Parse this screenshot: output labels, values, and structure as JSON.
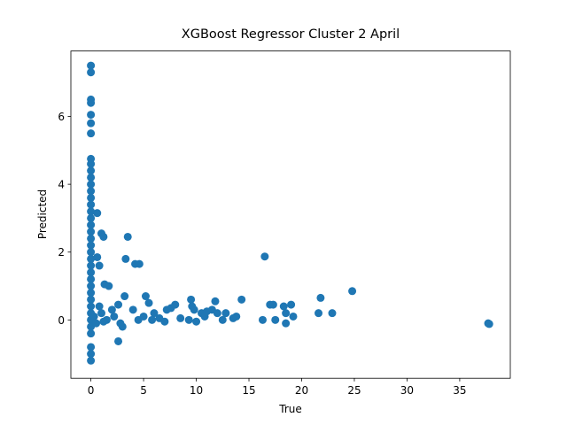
{
  "chart_data": {
    "type": "scatter",
    "title": "XGBoost Regressor Cluster 2 April",
    "x_label": "True",
    "y_label": "Predicted",
    "color": "#1f77b4",
    "x": [
      0,
      0,
      0,
      0,
      0,
      0,
      0,
      0,
      0,
      0,
      0,
      0,
      0,
      0,
      0,
      0,
      0,
      0,
      0,
      0,
      0,
      0,
      0,
      0,
      0,
      0,
      0,
      0,
      0,
      0,
      0,
      0,
      0,
      0,
      0,
      0,
      0,
      0.6,
      1.0,
      1.2,
      3.5,
      3.3,
      4.2,
      4.6,
      0.6,
      0.8,
      1.3,
      1.7,
      3.2,
      5.2,
      5.5,
      2.6,
      2.0,
      4.0,
      6.0,
      7.2,
      7.6,
      8.0,
      9.5,
      9.6,
      9.8,
      10.5,
      11.0,
      11.5,
      11.8,
      12.0,
      12.8,
      13.5,
      14.3,
      16.3,
      16.5,
      17.0,
      17.3,
      17.5,
      18.3,
      18.5,
      18.5,
      19.0,
      19.2,
      21.6,
      21.8,
      22.9,
      24.8,
      37.7,
      37.8,
      2.6,
      3.0,
      1.5,
      2.2,
      4.5,
      5.0,
      6.5,
      7.0,
      8.5,
      9.3,
      10.0,
      10.8,
      12.5,
      13.8,
      0.3,
      0.5,
      1.0,
      0.8,
      1.2,
      2.8,
      5.8
    ],
    "values": [
      7.5,
      7.3,
      6.5,
      6.4,
      6.05,
      5.8,
      5.5,
      4.75,
      4.6,
      4.4,
      4.2,
      4.0,
      3.8,
      3.6,
      3.4,
      3.2,
      3.0,
      2.8,
      2.6,
      2.4,
      2.2,
      2.0,
      1.8,
      1.6,
      1.4,
      1.2,
      1.0,
      0.8,
      0.6,
      0.4,
      0.2,
      0,
      -0.2,
      -0.4,
      -0.8,
      -1.0,
      -1.2,
      3.15,
      2.55,
      2.45,
      2.45,
      1.8,
      1.65,
      1.65,
      1.85,
      1.6,
      1.05,
      1.0,
      0.7,
      0.7,
      0.5,
      0.45,
      0.3,
      0.3,
      0.2,
      0.3,
      0.35,
      0.45,
      0.6,
      0.4,
      0.3,
      0.2,
      0.25,
      0.3,
      0.55,
      0.2,
      0.2,
      0.05,
      0.6,
      0.0,
      1.87,
      0.45,
      0.45,
      0.0,
      0.4,
      0.2,
      -0.1,
      0.45,
      0.1,
      0.2,
      0.65,
      0.2,
      0.85,
      -0.1,
      -0.12,
      -0.63,
      -0.2,
      0.0,
      0.1,
      0.0,
      0.1,
      0.05,
      -0.05,
      0.05,
      0.0,
      -0.05,
      0.1,
      0.0,
      0.1,
      0.1,
      -0.1,
      0.2,
      0.4,
      -0.05,
      -0.1,
      0.0
    ],
    "xlim": [
      -1.9,
      39.8
    ],
    "ylim": [
      -1.72,
      7.93
    ],
    "xticks": [
      0,
      5,
      10,
      15,
      20,
      25,
      30,
      35
    ],
    "yticks": [
      0,
      2,
      4,
      6
    ]
  }
}
